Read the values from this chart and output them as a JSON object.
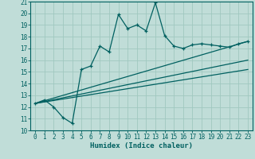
{
  "xlabel": "Humidex (Indice chaleur)",
  "bg_color": "#c0ddd8",
  "grid_color": "#a0c8c0",
  "line_color": "#006060",
  "xlim": [
    -0.5,
    23.5
  ],
  "ylim": [
    10,
    21
  ],
  "xticks": [
    0,
    1,
    2,
    3,
    4,
    5,
    6,
    7,
    8,
    9,
    10,
    11,
    12,
    13,
    14,
    15,
    16,
    17,
    18,
    19,
    20,
    21,
    22,
    23
  ],
  "yticks": [
    10,
    11,
    12,
    13,
    14,
    15,
    16,
    17,
    18,
    19,
    20,
    21
  ],
  "line1_x": [
    0,
    1,
    2,
    3,
    4,
    5,
    6,
    7,
    8,
    9,
    10,
    11,
    12,
    13,
    14,
    15,
    16,
    17,
    18,
    19,
    20,
    21,
    22,
    23
  ],
  "line1_y": [
    12.3,
    12.6,
    12.0,
    11.1,
    10.6,
    15.2,
    15.5,
    17.2,
    16.7,
    19.9,
    18.7,
    19.0,
    18.5,
    20.9,
    18.1,
    17.2,
    17.0,
    17.3,
    17.4,
    17.3,
    17.2,
    17.1,
    17.4,
    17.6
  ],
  "line2_x": [
    0,
    23
  ],
  "line2_y": [
    12.3,
    17.6
  ],
  "line3_x": [
    0,
    23
  ],
  "line3_y": [
    12.3,
    16.0
  ],
  "line4_x": [
    0,
    23
  ],
  "line4_y": [
    12.3,
    15.2
  ],
  "tick_fontsize": 5.5,
  "xlabel_fontsize": 6.5
}
